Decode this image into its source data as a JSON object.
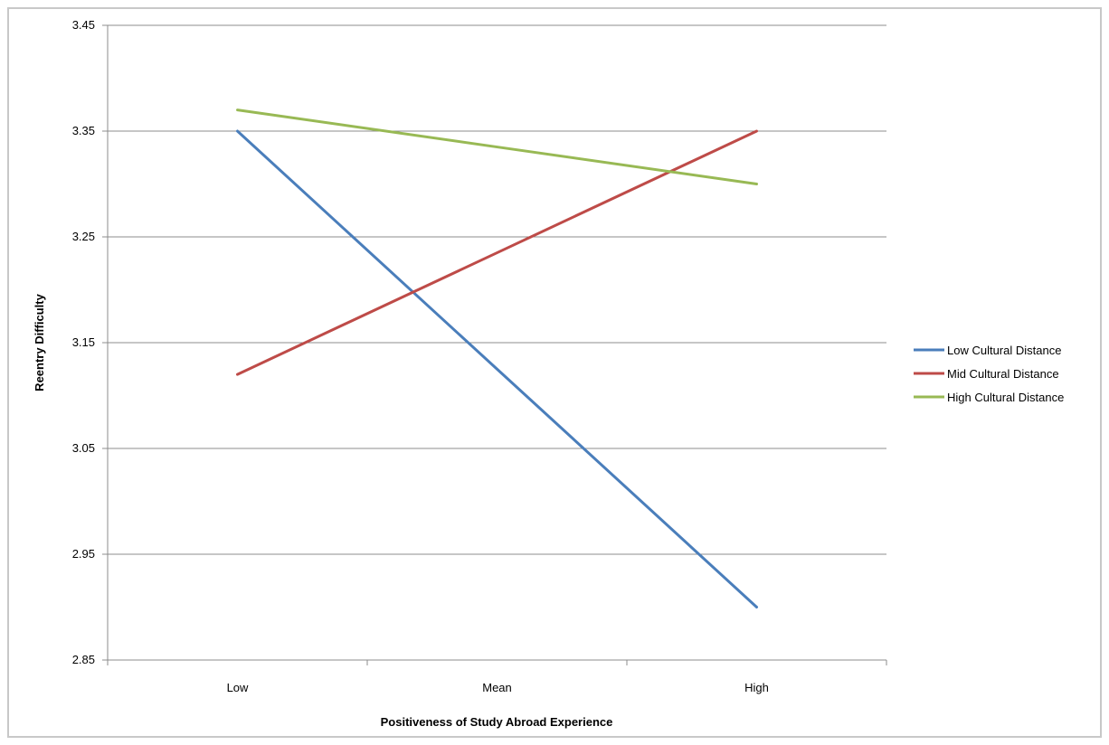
{
  "chart_data": {
    "type": "line",
    "categories": [
      "Low",
      "Mean",
      "High"
    ],
    "xlabel": "Positiveness of Study Abroad Experience",
    "ylabel": "Reentry Difficulty",
    "ylim": [
      2.85,
      3.45
    ],
    "yticks": [
      "3.45",
      "3.35",
      "3.25",
      "3.15",
      "3.05",
      "2.95",
      "2.85"
    ],
    "grid": true,
    "legend_position": "right",
    "series": [
      {
        "name": "Low Cultural Distance",
        "color": "#4a7ebb",
        "values": [
          3.35,
          3.125,
          2.9
        ]
      },
      {
        "name": "Mid Cultural Distance",
        "color": "#be4b48",
        "values": [
          3.12,
          3.235,
          3.35
        ]
      },
      {
        "name": "High Cultural Distance",
        "color": "#98b954",
        "values": [
          3.37,
          3.335,
          3.3
        ]
      }
    ]
  }
}
